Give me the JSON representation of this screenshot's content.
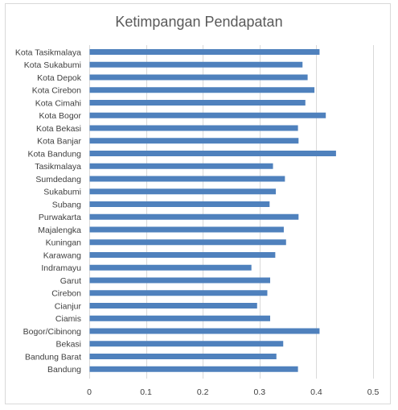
{
  "chart_data": {
    "type": "bar",
    "orientation": "horizontal",
    "title": "Ketimpangan Pendapatan",
    "xlabel": "",
    "ylabel": "",
    "xlim": [
      0,
      0.5
    ],
    "xticks": [
      0,
      0.1,
      0.2,
      0.3,
      0.4,
      0.5
    ],
    "xtick_labels": [
      "0",
      "0.1",
      "0.2",
      "0.3",
      "0.4",
      "0.5"
    ],
    "grid": true,
    "legend": "none",
    "bar_color": "#4f81bd",
    "categories": [
      "Kota Tasikmalaya",
      "Kota Sukabumi",
      "Kota Depok",
      "Kota Cirebon",
      "Kota Cimahi",
      "Kota Bogor",
      "Kota Bekasi",
      "Kota Banjar",
      "Kota Bandung",
      "Tasikmalaya",
      "Sumdedang",
      "Sukabumi",
      "Subang",
      "Purwakarta",
      "Majalengka",
      "Kuningan",
      "Karawang",
      "Indramayu",
      "Garut",
      "Cirebon",
      "Cianjur",
      "Ciamis",
      "Bogor/Cibinong",
      "Bekasi",
      "Bandung Barat",
      "Bandung"
    ],
    "values": [
      0.405,
      0.375,
      0.384,
      0.396,
      0.38,
      0.416,
      0.367,
      0.368,
      0.434,
      0.323,
      0.344,
      0.328,
      0.317,
      0.368,
      0.342,
      0.346,
      0.327,
      0.285,
      0.318,
      0.313,
      0.295,
      0.318,
      0.405,
      0.341,
      0.329,
      0.367
    ]
  }
}
